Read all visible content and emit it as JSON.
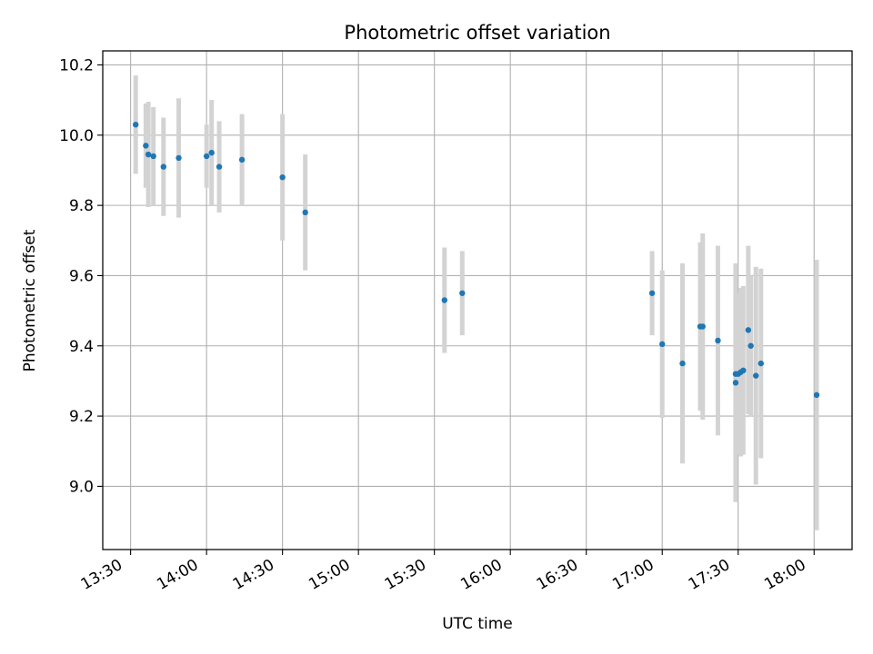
{
  "chart_data": {
    "type": "scatter",
    "title": "Photometric offset variation",
    "xlabel": "UTC time",
    "ylabel": "Photometric offset",
    "x_ticks": [
      "13:30",
      "14:00",
      "14:30",
      "15:00",
      "15:30",
      "16:00",
      "16:30",
      "17:00",
      "17:30",
      "18:00"
    ],
    "y_ticks": [
      "9.0",
      "9.2",
      "9.4",
      "9.6",
      "9.8",
      "10.0",
      "10.2"
    ],
    "ylim": [
      8.82,
      10.24
    ],
    "xlim": [
      "13:19",
      "18:15"
    ],
    "grid": true,
    "colors": {
      "point": "#1f77b4",
      "errorbar": "#d3d3d3",
      "grid": "#b0b0b0"
    },
    "points": [
      {
        "time": "13:32",
        "value": 10.03,
        "err": 0.14
      },
      {
        "time": "13:36",
        "value": 9.97,
        "err": 0.12
      },
      {
        "time": "13:37",
        "value": 9.945,
        "err": 0.15
      },
      {
        "time": "13:39",
        "value": 9.94,
        "err": 0.14
      },
      {
        "time": "13:43",
        "value": 9.91,
        "err": 0.14
      },
      {
        "time": "13:49",
        "value": 9.935,
        "err": 0.17
      },
      {
        "time": "14:00",
        "value": 9.94,
        "err": 0.09
      },
      {
        "time": "14:02",
        "value": 9.95,
        "err": 0.15
      },
      {
        "time": "14:05",
        "value": 9.91,
        "err": 0.13
      },
      {
        "time": "14:14",
        "value": 9.93,
        "err": 0.13
      },
      {
        "time": "14:30",
        "value": 9.88,
        "err": 0.18
      },
      {
        "time": "14:39",
        "value": 9.78,
        "err": 0.165
      },
      {
        "time": "15:34",
        "value": 9.53,
        "err": 0.15
      },
      {
        "time": "15:41",
        "value": 9.55,
        "err": 0.12
      },
      {
        "time": "16:56",
        "value": 9.55,
        "err": 0.12
      },
      {
        "time": "17:00",
        "value": 9.405,
        "err": 0.21
      },
      {
        "time": "17:08",
        "value": 9.35,
        "err": 0.285
      },
      {
        "time": "17:15",
        "value": 9.455,
        "err": 0.24
      },
      {
        "time": "17:16",
        "value": 9.455,
        "err": 0.265
      },
      {
        "time": "17:22",
        "value": 9.415,
        "err": 0.27
      },
      {
        "time": "17:29",
        "value": 9.295,
        "err": 0.34
      },
      {
        "time": "17:29",
        "value": 9.32,
        "err": 0.22
      },
      {
        "time": "17:30",
        "value": 9.32,
        "err": 0.23
      },
      {
        "time": "17:31",
        "value": 9.325,
        "err": 0.24
      },
      {
        "time": "17:32",
        "value": 9.33,
        "err": 0.24
      },
      {
        "time": "17:34",
        "value": 9.445,
        "err": 0.24
      },
      {
        "time": "17:35",
        "value": 9.4,
        "err": 0.2
      },
      {
        "time": "17:37",
        "value": 9.315,
        "err": 0.31
      },
      {
        "time": "17:39",
        "value": 9.35,
        "err": 0.27
      },
      {
        "time": "18:01",
        "value": 9.26,
        "err": 0.385
      }
    ]
  }
}
